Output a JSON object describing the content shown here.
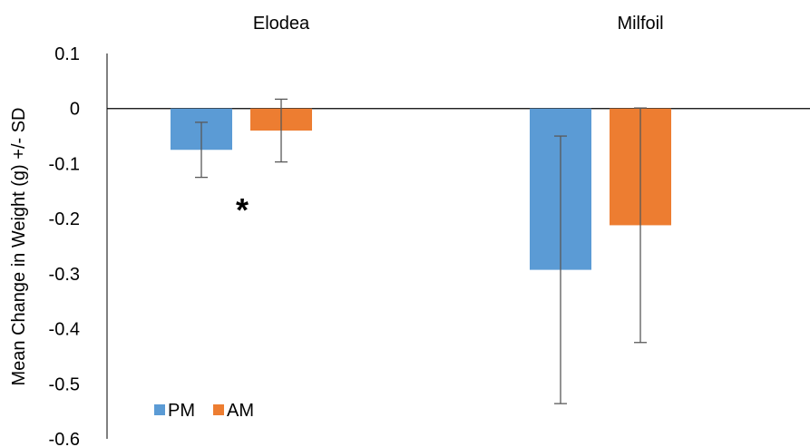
{
  "chart_data": {
    "type": "bar",
    "categories": [
      "Elodea",
      "Milfoil"
    ],
    "ylabel": "Mean Change in Weight (g) +/- SD",
    "ylim": [
      -0.6,
      0.1
    ],
    "yticks": [
      0.1,
      0,
      -0.1,
      -0.2,
      -0.3,
      -0.4,
      -0.5,
      -0.6
    ],
    "ytick_labels": [
      "0.1",
      "0",
      "-0.1",
      "-0.2",
      "-0.3",
      "-0.4",
      "-0.5",
      "-0.6"
    ],
    "series": [
      {
        "name": "PM",
        "color": "#5B9BD5",
        "values": [
          -0.075,
          -0.293
        ],
        "sd": [
          0.05,
          0.243
        ]
      },
      {
        "name": "AM",
        "color": "#ED7D31",
        "values": [
          -0.04,
          -0.212
        ],
        "sd": [
          0.057,
          0.213
        ]
      }
    ],
    "annotations": [
      {
        "text": "*",
        "category": "Elodea"
      }
    ],
    "legend_position": "bottom-left",
    "grid": false
  }
}
